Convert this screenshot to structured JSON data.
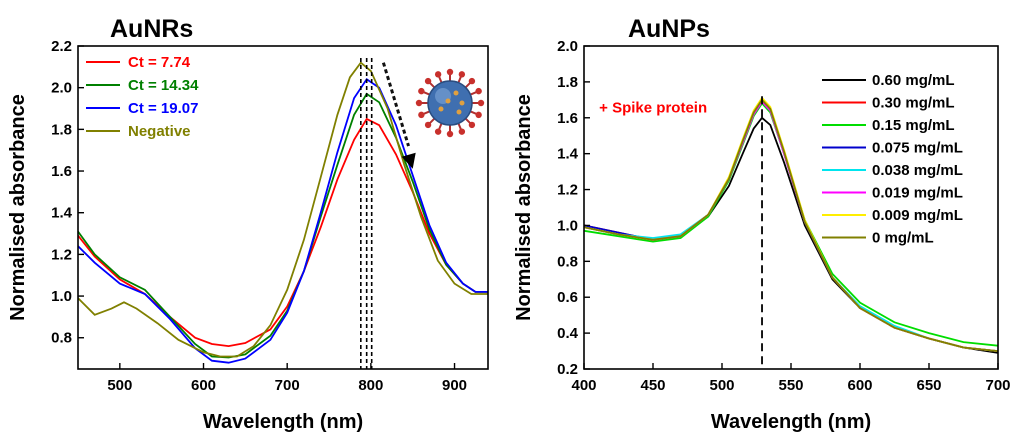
{
  "chart_data": [
    {
      "type": "line",
      "title": "AuNRs",
      "xlabel": "Wavelength (nm)",
      "ylabel": "Normalised absorbance",
      "xlim": [
        450,
        940
      ],
      "ylim": [
        0.65,
        2.2
      ],
      "xticks": [
        500,
        600,
        700,
        800,
        900
      ],
      "yticks": [
        0.8,
        1.0,
        1.2,
        1.4,
        1.6,
        1.8,
        2.0,
        2.2
      ],
      "grid": false,
      "legend_position": "top-left",
      "series": [
        {
          "name": "Ct = 7.74",
          "color": "#ff0000",
          "points": [
            [
              450,
              1.29
            ],
            [
              470,
              1.19
            ],
            [
              500,
              1.08
            ],
            [
              530,
              1.01
            ],
            [
              560,
              0.9
            ],
            [
              590,
              0.8
            ],
            [
              610,
              0.77
            ],
            [
              630,
              0.76
            ],
            [
              650,
              0.775
            ],
            [
              680,
              0.84
            ],
            [
              700,
              0.95
            ],
            [
              720,
              1.12
            ],
            [
              740,
              1.33
            ],
            [
              760,
              1.56
            ],
            [
              780,
              1.75
            ],
            [
              795,
              1.85
            ],
            [
              810,
              1.82
            ],
            [
              830,
              1.68
            ],
            [
              850,
              1.5
            ],
            [
              870,
              1.3
            ],
            [
              890,
              1.15
            ],
            [
              910,
              1.06
            ],
            [
              925,
              1.02
            ],
            [
              940,
              1.02
            ]
          ]
        },
        {
          "name": "Ct = 14.34",
          "color": "#008000",
          "points": [
            [
              450,
              1.31
            ],
            [
              470,
              1.2
            ],
            [
              500,
              1.09
            ],
            [
              530,
              1.03
            ],
            [
              560,
              0.9
            ],
            [
              590,
              0.77
            ],
            [
              610,
              0.71
            ],
            [
              630,
              0.705
            ],
            [
              650,
              0.72
            ],
            [
              680,
              0.81
            ],
            [
              700,
              0.93
            ],
            [
              720,
              1.12
            ],
            [
              740,
              1.38
            ],
            [
              760,
              1.63
            ],
            [
              780,
              1.87
            ],
            [
              795,
              1.97
            ],
            [
              810,
              1.93
            ],
            [
              830,
              1.76
            ],
            [
              850,
              1.55
            ],
            [
              870,
              1.32
            ],
            [
              890,
              1.15
            ],
            [
              910,
              1.06
            ],
            [
              925,
              1.02
            ],
            [
              940,
              1.02
            ]
          ]
        },
        {
          "name": "Ct = 19.07",
          "color": "#0000ff",
          "points": [
            [
              450,
              1.24
            ],
            [
              470,
              1.16
            ],
            [
              500,
              1.06
            ],
            [
              530,
              1.01
            ],
            [
              560,
              0.89
            ],
            [
              590,
              0.75
            ],
            [
              610,
              0.69
            ],
            [
              630,
              0.68
            ],
            [
              650,
              0.7
            ],
            [
              680,
              0.79
            ],
            [
              700,
              0.92
            ],
            [
              720,
              1.12
            ],
            [
              740,
              1.4
            ],
            [
              760,
              1.69
            ],
            [
              780,
              1.95
            ],
            [
              795,
              2.04
            ],
            [
              810,
              2.0
            ],
            [
              830,
              1.82
            ],
            [
              850,
              1.58
            ],
            [
              870,
              1.34
            ],
            [
              890,
              1.16
            ],
            [
              910,
              1.06
            ],
            [
              925,
              1.02
            ],
            [
              940,
              1.02
            ]
          ]
        },
        {
          "name": "Negative",
          "color": "#808000",
          "points": [
            [
              450,
              0.99
            ],
            [
              470,
              0.91
            ],
            [
              490,
              0.94
            ],
            [
              505,
              0.97
            ],
            [
              520,
              0.94
            ],
            [
              545,
              0.87
            ],
            [
              570,
              0.79
            ],
            [
              600,
              0.73
            ],
            [
              620,
              0.71
            ],
            [
              640,
              0.71
            ],
            [
              660,
              0.76
            ],
            [
              680,
              0.86
            ],
            [
              700,
              1.03
            ],
            [
              720,
              1.27
            ],
            [
              740,
              1.57
            ],
            [
              760,
              1.87
            ],
            [
              775,
              2.05
            ],
            [
              788,
              2.12
            ],
            [
              800,
              2.08
            ],
            [
              820,
              1.9
            ],
            [
              840,
              1.63
            ],
            [
              860,
              1.38
            ],
            [
              880,
              1.17
            ],
            [
              900,
              1.06
            ],
            [
              920,
              1.01
            ],
            [
              940,
              1.01
            ]
          ]
        }
      ],
      "annotations": [
        {
          "type": "vline",
          "x": 788
        },
        {
          "type": "vline",
          "x": 795
        },
        {
          "type": "vline",
          "x": 801
        },
        {
          "type": "arrow",
          "label": "",
          "direction": "down-right"
        }
      ]
    },
    {
      "type": "line",
      "title": "AuNPs",
      "xlabel": "Wavelength (nm)",
      "ylabel": "Normalised absorbance",
      "xlim": [
        400,
        700
      ],
      "ylim": [
        0.2,
        2.0
      ],
      "xticks": [
        400,
        450,
        500,
        550,
        600,
        650,
        700
      ],
      "yticks": [
        0.2,
        0.4,
        0.6,
        0.8,
        1.0,
        1.2,
        1.4,
        1.6,
        1.8,
        2.0
      ],
      "grid": false,
      "legend_position": "top-right",
      "annotation_text": "+ Spike protein",
      "peak_x": 529,
      "series": [
        {
          "name": "0.60 mg/mL",
          "color": "#000000",
          "points": [
            [
              400,
              0.99
            ],
            [
              425,
              0.95
            ],
            [
              450,
              0.92
            ],
            [
              470,
              0.94
            ],
            [
              490,
              1.05
            ],
            [
              505,
              1.22
            ],
            [
              515,
              1.4
            ],
            [
              523,
              1.54
            ],
            [
              529,
              1.6
            ],
            [
              535,
              1.56
            ],
            [
              545,
              1.35
            ],
            [
              560,
              1.0
            ],
            [
              580,
              0.7
            ],
            [
              600,
              0.54
            ],
            [
              625,
              0.43
            ],
            [
              650,
              0.37
            ],
            [
              675,
              0.32
            ],
            [
              700,
              0.29
            ]
          ]
        },
        {
          "name": "0.30 mg/mL",
          "color": "#ff0000",
          "points": [
            [
              400,
              1.0
            ],
            [
              425,
              0.96
            ],
            [
              450,
              0.92
            ],
            [
              470,
              0.94
            ],
            [
              490,
              1.06
            ],
            [
              505,
              1.26
            ],
            [
              515,
              1.46
            ],
            [
              523,
              1.62
            ],
            [
              529,
              1.69
            ],
            [
              535,
              1.64
            ],
            [
              545,
              1.4
            ],
            [
              560,
              1.02
            ],
            [
              580,
              0.71
            ],
            [
              600,
              0.54
            ],
            [
              625,
              0.43
            ],
            [
              650,
              0.37
            ],
            [
              675,
              0.32
            ],
            [
              700,
              0.3
            ]
          ]
        },
        {
          "name": "0.15 mg/mL",
          "color": "#00dd00",
          "points": [
            [
              400,
              0.97
            ],
            [
              425,
              0.94
            ],
            [
              450,
              0.91
            ],
            [
              470,
              0.93
            ],
            [
              490,
              1.05
            ],
            [
              505,
              1.25
            ],
            [
              515,
              1.45
            ],
            [
              523,
              1.61
            ],
            [
              529,
              1.68
            ],
            [
              535,
              1.63
            ],
            [
              545,
              1.4
            ],
            [
              560,
              1.03
            ],
            [
              580,
              0.73
            ],
            [
              600,
              0.57
            ],
            [
              625,
              0.46
            ],
            [
              650,
              0.4
            ],
            [
              675,
              0.35
            ],
            [
              700,
              0.33
            ]
          ]
        },
        {
          "name": "0.075 mg/mL",
          "color": "#0000cc",
          "points": [
            [
              400,
              1.0
            ],
            [
              425,
              0.96
            ],
            [
              450,
              0.92
            ],
            [
              470,
              0.94
            ],
            [
              490,
              1.06
            ],
            [
              505,
              1.26
            ],
            [
              515,
              1.47
            ],
            [
              523,
              1.63
            ],
            [
              529,
              1.7
            ],
            [
              535,
              1.65
            ],
            [
              545,
              1.41
            ],
            [
              560,
              1.02
            ],
            [
              580,
              0.71
            ],
            [
              600,
              0.54
            ],
            [
              625,
              0.43
            ],
            [
              650,
              0.37
            ],
            [
              675,
              0.32
            ],
            [
              700,
              0.3
            ]
          ]
        },
        {
          "name": "0.038 mg/mL",
          "color": "#00e5ee",
          "points": [
            [
              400,
              0.99
            ],
            [
              425,
              0.95
            ],
            [
              450,
              0.93
            ],
            [
              470,
              0.95
            ],
            [
              490,
              1.06
            ],
            [
              505,
              1.26
            ],
            [
              515,
              1.46
            ],
            [
              523,
              1.62
            ],
            [
              529,
              1.69
            ],
            [
              535,
              1.64
            ],
            [
              545,
              1.4
            ],
            [
              560,
              1.02
            ],
            [
              580,
              0.71
            ],
            [
              600,
              0.55
            ],
            [
              625,
              0.44
            ],
            [
              650,
              0.37
            ],
            [
              675,
              0.32
            ],
            [
              700,
              0.3
            ]
          ]
        },
        {
          "name": "0.019 mg/mL",
          "color": "#ff00ff",
          "points": [
            [
              400,
              0.99
            ],
            [
              425,
              0.95
            ],
            [
              450,
              0.92
            ],
            [
              470,
              0.94
            ],
            [
              490,
              1.06
            ],
            [
              505,
              1.26
            ],
            [
              515,
              1.46
            ],
            [
              523,
              1.62
            ],
            [
              529,
              1.69
            ],
            [
              535,
              1.64
            ],
            [
              545,
              1.4
            ],
            [
              560,
              1.02
            ],
            [
              580,
              0.71
            ],
            [
              600,
              0.54
            ],
            [
              625,
              0.43
            ],
            [
              650,
              0.37
            ],
            [
              675,
              0.32
            ],
            [
              700,
              0.3
            ]
          ]
        },
        {
          "name": "0.009 mg/mL",
          "color": "#ffee00",
          "points": [
            [
              400,
              0.99
            ],
            [
              425,
              0.95
            ],
            [
              450,
              0.92
            ],
            [
              470,
              0.94
            ],
            [
              490,
              1.06
            ],
            [
              505,
              1.27
            ],
            [
              515,
              1.48
            ],
            [
              523,
              1.64
            ],
            [
              529,
              1.71
            ],
            [
              535,
              1.66
            ],
            [
              545,
              1.42
            ],
            [
              560,
              1.03
            ],
            [
              580,
              0.71
            ],
            [
              600,
              0.54
            ],
            [
              625,
              0.43
            ],
            [
              650,
              0.37
            ],
            [
              675,
              0.32
            ],
            [
              700,
              0.3
            ]
          ]
        },
        {
          "name": "0 mg/mL",
          "color": "#808000",
          "points": [
            [
              400,
              0.99
            ],
            [
              425,
              0.95
            ],
            [
              450,
              0.92
            ],
            [
              470,
              0.94
            ],
            [
              490,
              1.06
            ],
            [
              505,
              1.26
            ],
            [
              515,
              1.47
            ],
            [
              523,
              1.63
            ],
            [
              529,
              1.7
            ],
            [
              535,
              1.65
            ],
            [
              545,
              1.41
            ],
            [
              560,
              1.02
            ],
            [
              580,
              0.71
            ],
            [
              600,
              0.54
            ],
            [
              625,
              0.43
            ],
            [
              650,
              0.37
            ],
            [
              675,
              0.32
            ],
            [
              700,
              0.3
            ]
          ]
        }
      ]
    }
  ]
}
